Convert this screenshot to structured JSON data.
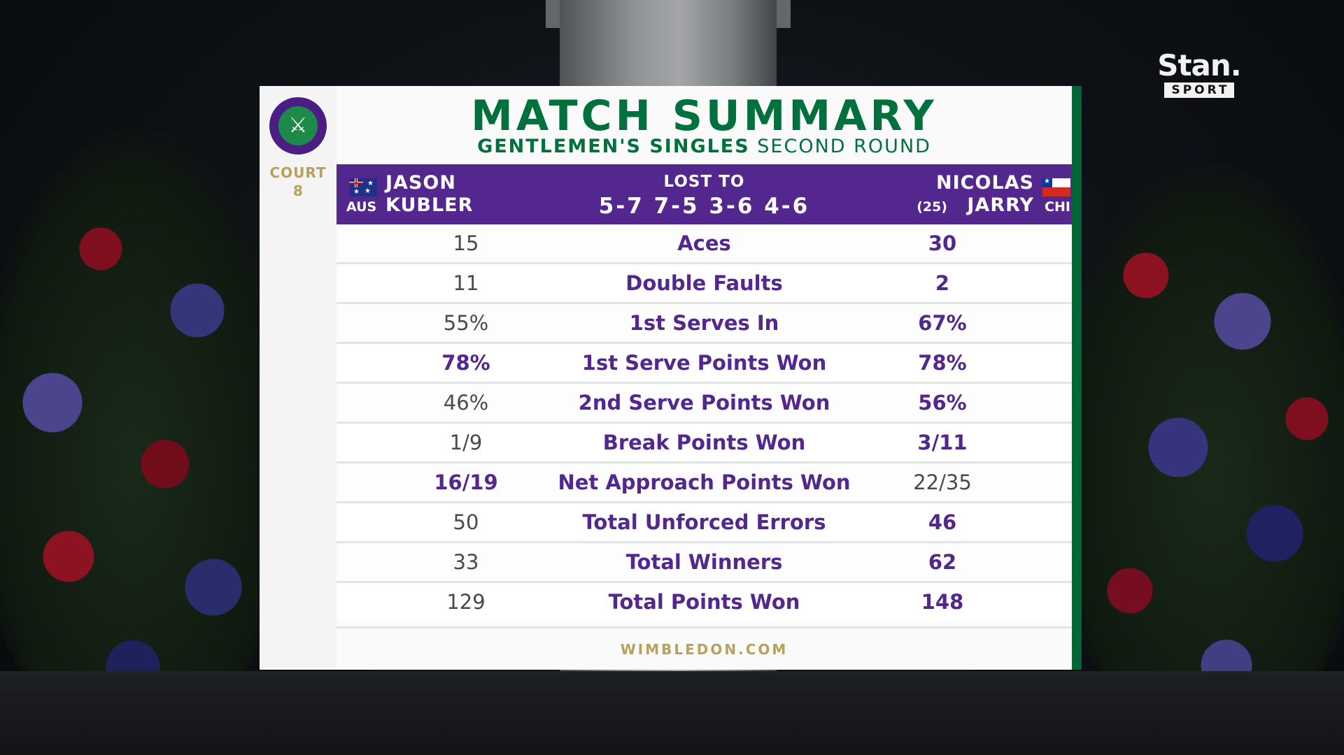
{
  "broadcaster": {
    "name": "Stan.",
    "sub": "SPORT"
  },
  "court": {
    "label": "COURT",
    "number": "8"
  },
  "title": "MATCH SUMMARY",
  "subtitle": {
    "event": "GENTLEMEN'S SINGLES",
    "round": "SECOND ROUND"
  },
  "player1": {
    "first": "JASON",
    "last": "KUBLER",
    "country": "AUS"
  },
  "player2": {
    "first": "NICOLAS",
    "last": "JARRY",
    "seed": "(25)",
    "country": "CHI"
  },
  "result": {
    "text": "LOST TO",
    "score": "5-7 7-5 3-6 4-6"
  },
  "stats": [
    {
      "label": "Aces",
      "p1": "15",
      "p2": "30",
      "leader": "p2"
    },
    {
      "label": "Double Faults",
      "p1": "11",
      "p2": "2",
      "leader": "p2"
    },
    {
      "label": "1st Serves In",
      "p1": "55%",
      "p2": "67%",
      "leader": "p2"
    },
    {
      "label": "1st Serve Points Won",
      "p1": "78%",
      "p2": "78%",
      "leader": "both"
    },
    {
      "label": "2nd Serve Points Won",
      "p1": "46%",
      "p2": "56%",
      "leader": "p2"
    },
    {
      "label": "Break Points Won",
      "p1": "1/9",
      "p2": "3/11",
      "leader": "p2"
    },
    {
      "label": "Net Approach Points Won",
      "p1": "16/19",
      "p2": "22/35",
      "leader": "p1"
    },
    {
      "label": "Total Unforced Errors",
      "p1": "50",
      "p2": "46",
      "leader": "p2"
    },
    {
      "label": "Total Winners",
      "p1": "33",
      "p2": "62",
      "leader": "p2"
    },
    {
      "label": "Total Points Won",
      "p1": "129",
      "p2": "148",
      "leader": "p2"
    }
  ],
  "footer": "WIMBLEDON.COM",
  "colors": {
    "purple": "#54278f",
    "green": "#00703c",
    "gold": "#b8a15a",
    "accent_bar": "#006633"
  }
}
